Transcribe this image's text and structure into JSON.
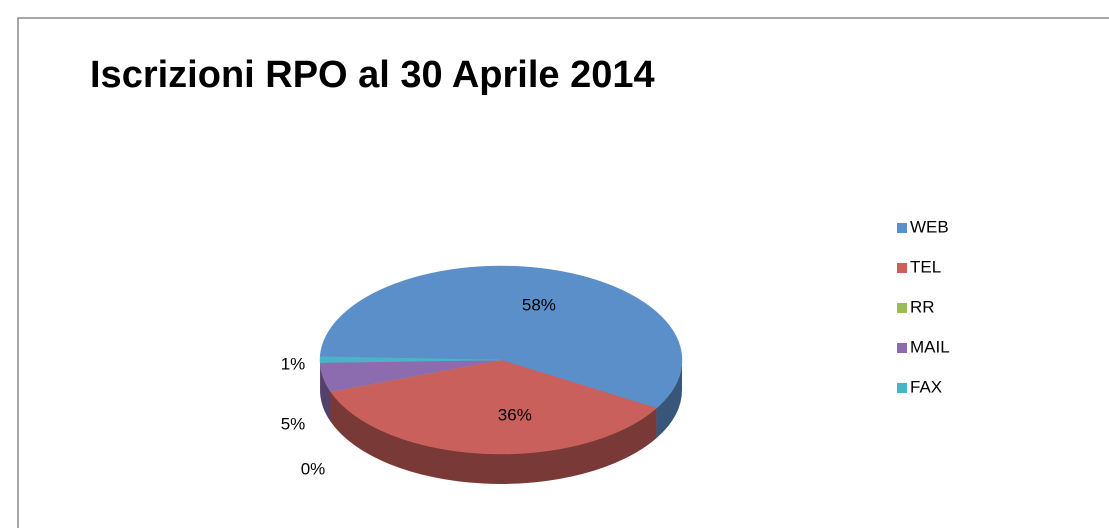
{
  "chart_data": {
    "type": "pie",
    "title": "Iscrizioni RPO al 30 Aprile 2014",
    "categories": [
      "WEB",
      "TEL",
      "RR",
      "MAIL",
      "FAX"
    ],
    "values": [
      58,
      36,
      0,
      5,
      1
    ],
    "value_labels": [
      "58%",
      "36%",
      "0%",
      "5%",
      "1%"
    ],
    "colors": [
      "#5b8fc9",
      "#c9605c",
      "#9bbb59",
      "#8c6bae",
      "#4bb3c9"
    ],
    "legend": "right"
  }
}
